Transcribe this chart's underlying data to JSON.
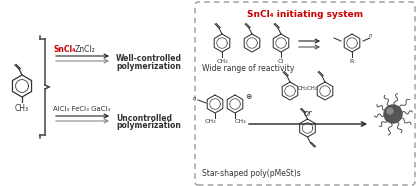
{
  "bg_color": "#ffffff",
  "title": "SnCl₄ initiating system",
  "title_color": "#cc0000",
  "left_panel": {
    "molecule_label": "CH₃",
    "top_label_red": "SnCl₄",
    "top_label_black": "ZnCl₂",
    "top_result_line1": "Well-controlled",
    "top_result_line2": "polymerization",
    "bot_label": "AlCl₃ FeCl₃ GaCl₃",
    "bot_result_line1": "Uncontrolled",
    "bot_result_line2": "polymerization"
  },
  "right_top_label": "Wide range of reactivity",
  "right_bot_label": "Star-shaped poly(pMeSt)s",
  "or_text": "or",
  "sub3_labels": [
    "CH₃",
    "Cl",
    "R"
  ],
  "ch2ch2_label": "CH₂CH₂",
  "ch3_label": "CH₃",
  "box_color": "#888888",
  "arrow_color": "#333333",
  "red_color": "#cc0000",
  "text_color": "#222222",
  "gray_color": "#888888",
  "dark_color": "#333333"
}
